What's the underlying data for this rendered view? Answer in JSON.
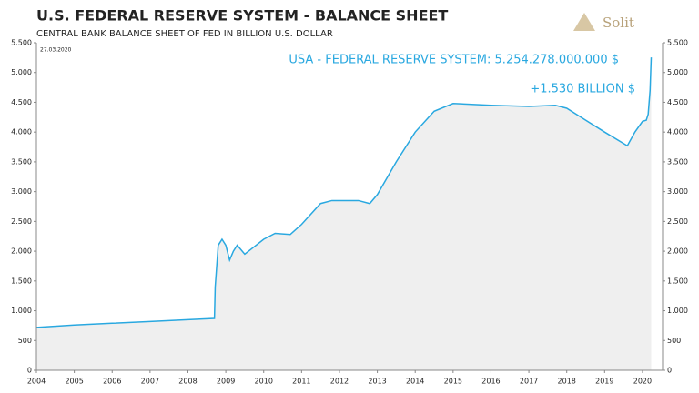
{
  "chart_data": {
    "type": "area",
    "title": "U.S. FEDERAL RESERVE SYSTEM - BALANCE SHEET",
    "subtitle": "CENTRAL BANK BALANCE SHEET OF FED IN BILLION U.S. DOLLAR",
    "date": "27.03.2020",
    "logo": "Solit",
    "annotations": [
      "USA - FEDERAL RESERVE SYSTEM: 5.254.278.000.000 $",
      "+1.530 BILLION $"
    ],
    "color": "#29a8e0",
    "fill": "#efefef",
    "x": [
      2004,
      2005,
      2006,
      2007,
      2008,
      2008.7,
      2008.72,
      2008.8,
      2008.9,
      2009.0,
      2009.1,
      2009.2,
      2009.3,
      2009.5,
      2009.7,
      2010.0,
      2010.3,
      2010.7,
      2011.0,
      2011.5,
      2011.8,
      2012.0,
      2012.5,
      2012.8,
      2013.0,
      2013.5,
      2014.0,
      2014.5,
      2015.0,
      2016.0,
      2017.0,
      2017.7,
      2018.0,
      2018.5,
      2019.0,
      2019.6,
      2019.8,
      2020.0,
      2020.1,
      2020.15,
      2020.2,
      2020.23
    ],
    "values": [
      720,
      760,
      790,
      820,
      850,
      870,
      1400,
      2100,
      2200,
      2100,
      1850,
      2000,
      2100,
      1950,
      2050,
      2200,
      2300,
      2280,
      2450,
      2800,
      2850,
      2850,
      2850,
      2800,
      2950,
      3500,
      4000,
      4350,
      4480,
      4450,
      4430,
      4450,
      4400,
      4200,
      4000,
      3770,
      4000,
      4180,
      4200,
      4300,
      4700,
      5254
    ],
    "xlim": [
      2004,
      2020.53
    ],
    "xticks": [
      2004,
      2005,
      2006,
      2007,
      2008,
      2009,
      2010,
      2011,
      2012,
      2013,
      2014,
      2015,
      2016,
      2017,
      2018,
      2019,
      2020
    ],
    "ylim": [
      0,
      5500
    ],
    "yticks": [
      0,
      500,
      {
        "value": 1000,
        "label": "1.000"
      },
      {
        "value": 1500,
        "label": "1.500"
      },
      {
        "value": 2000,
        "label": "2.000"
      },
      {
        "value": 2500,
        "label": "2.500"
      },
      {
        "value": 3000,
        "label": "3.000"
      },
      {
        "value": 3500,
        "label": "3.500"
      },
      {
        "value": 4000,
        "label": "4.000"
      },
      {
        "value": 4500,
        "label": "4.500"
      },
      {
        "value": 5000,
        "label": "5.000"
      },
      {
        "value": 5500,
        "label": "5.500"
      }
    ],
    "y2lim": [
      0,
      5500
    ],
    "y2ticks": [
      0,
      500,
      {
        "value": 1000,
        "label": "1.000"
      },
      {
        "value": 1500,
        "label": "1.500"
      },
      {
        "value": 2000,
        "label": "2.000"
      },
      {
        "value": 2500,
        "label": "2.500"
      },
      {
        "value": 3000,
        "label": "3.000"
      },
      {
        "value": 3500,
        "label": "3.500"
      },
      {
        "value": 4000,
        "label": "4.000"
      },
      {
        "value": 4500,
        "label": "4.500"
      },
      {
        "value": 5000,
        "label": "5.000"
      },
      {
        "value": 5500,
        "label": "5.500"
      }
    ]
  }
}
